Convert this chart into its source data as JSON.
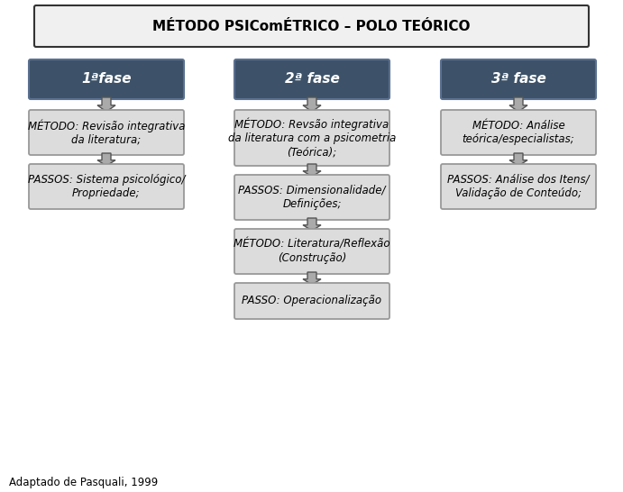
{
  "title": "MÉTODO PSIComÉTRICO – POLO TEÓRICO",
  "background_color": "#ffffff",
  "footer": "Adaptado de Pasquali, 1999",
  "header_fill": "#3d5268",
  "header_edge": "#5a7090",
  "body_fill": "#dcdcdc",
  "body_edge": "#999999",
  "title_fill": "#f0f0f0",
  "title_edge": "#333333",
  "arrow_color": "#666666",
  "phase_labels": [
    "1ªfase",
    "2ª fase",
    "3ª fase"
  ],
  "col0_boxes": [
    "MÉTODO: Revisão integrativa\nda literatura;",
    "PASSOS: Sistema psicológico/\nPropriedade;"
  ],
  "col1_boxes": [
    "MÉTODO: Revsão integrativa\nda literatura com a psicometria\n(Teórica);",
    "PASSOS: Dimensionalidade/\nDefinições;",
    "MÉTODO: Literatura/Reflexão\n(Construção)",
    "PASSO: Operacionalização"
  ],
  "col2_boxes": [
    "MÉTODO: Análise\nteórica/especialistas;",
    "PASSOS: Análise dos Itens/\nValidação de Conteúdo;"
  ]
}
